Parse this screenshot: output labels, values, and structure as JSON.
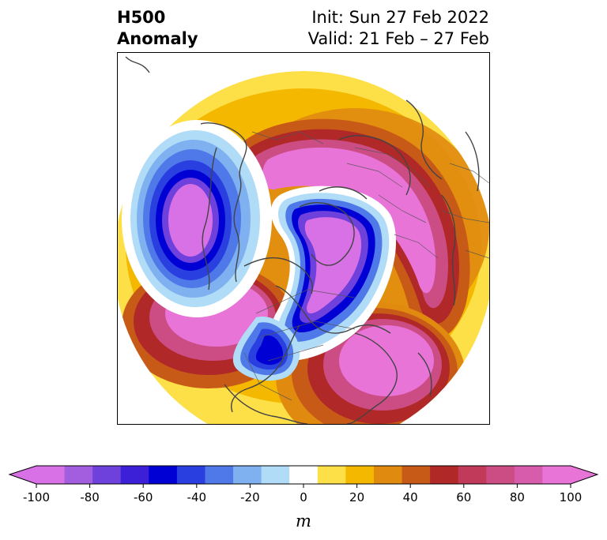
{
  "title": {
    "line1": "H500",
    "line2": "Anomaly",
    "init": "Init: Sun 27 Feb 2022",
    "valid": "Valid: 21 Feb – 27 Feb"
  },
  "colorbar": {
    "unit": "m",
    "tick_labels": [
      "-100",
      "-80",
      "-60",
      "-40",
      "-20",
      "0",
      "20",
      "40",
      "60",
      "80",
      "100"
    ],
    "colors": [
      "#d870e6",
      "#a35ee0",
      "#6e40dc",
      "#3b20d8",
      "#0000d4",
      "#2a3fe0",
      "#4f79e8",
      "#7fb0f0",
      "#b0dcf8",
      "#ffffff",
      "#fde047",
      "#f5b800",
      "#e08a10",
      "#c85a18",
      "#b02828",
      "#c23a5a",
      "#cc4c84",
      "#d85cac",
      "#e874d8"
    ],
    "min_color": "#d870e6",
    "max_color": "#e874d8"
  }
}
